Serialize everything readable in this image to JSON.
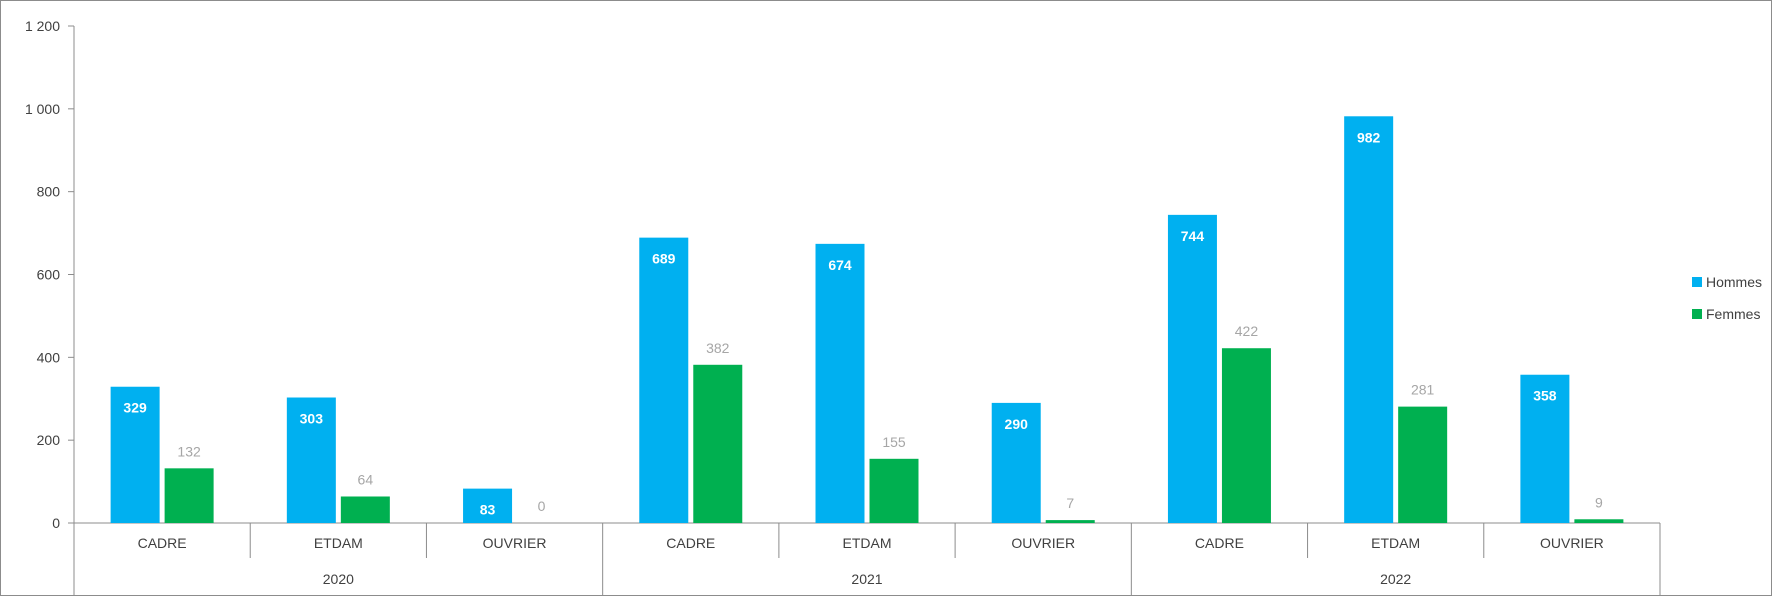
{
  "chart_data": {
    "type": "bar",
    "title": "",
    "xlabel": "",
    "ylabel": "",
    "ylim": [
      0,
      1200
    ],
    "yticks": [
      0,
      200,
      400,
      600,
      800,
      1000,
      1200
    ],
    "ytick_labels": [
      "0",
      "200",
      "400",
      "600",
      "800",
      "1 000",
      "1 200"
    ],
    "groups": [
      {
        "year": "2020",
        "categories": [
          "CADRE",
          "ETDAM",
          "OUVRIER"
        ]
      },
      {
        "year": "2021",
        "categories": [
          "CADRE",
          "ETDAM",
          "OUVRIER"
        ]
      },
      {
        "year": "2022",
        "categories": [
          "CADRE",
          "ETDAM",
          "OUVRIER"
        ]
      }
    ],
    "series": [
      {
        "name": "Hommes",
        "color": "#00b0f0",
        "values": [
          329,
          303,
          83,
          689,
          674,
          290,
          744,
          982,
          358
        ]
      },
      {
        "name": "Femmes",
        "color": "#00b050",
        "values": [
          132,
          64,
          0,
          382,
          155,
          7,
          422,
          281,
          9
        ]
      }
    ],
    "grid": false,
    "legend_position": "right"
  }
}
